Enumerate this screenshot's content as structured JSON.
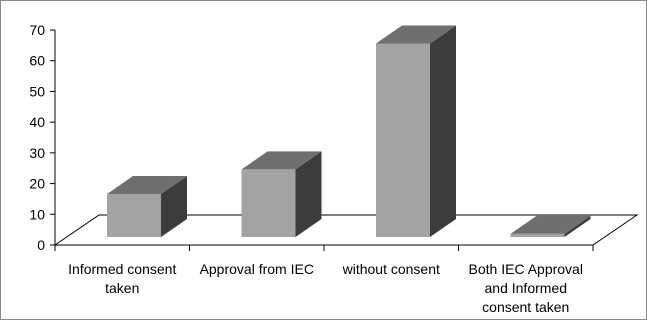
{
  "chart_data": {
    "type": "bar",
    "style": "3d-column",
    "categories": [
      [
        "Informed consent",
        "taken"
      ],
      [
        "Approval from IEC"
      ],
      [
        "without consent"
      ],
      [
        "Both IEC Approval",
        "and Informed",
        "consent taken"
      ]
    ],
    "values": [
      14,
      22,
      63,
      1
    ],
    "ylim": [
      0,
      70
    ],
    "yticks": [
      0,
      10,
      20,
      30,
      40,
      50,
      60,
      70
    ],
    "title": "",
    "xlabel": "",
    "ylabel": "",
    "grid": false,
    "legend": "none",
    "colors": {
      "front": "#a3a3a3",
      "top": "#6f6f6f",
      "side": "#3c3c3c",
      "axis": "#000000",
      "floor_edge": "#000000"
    }
  }
}
